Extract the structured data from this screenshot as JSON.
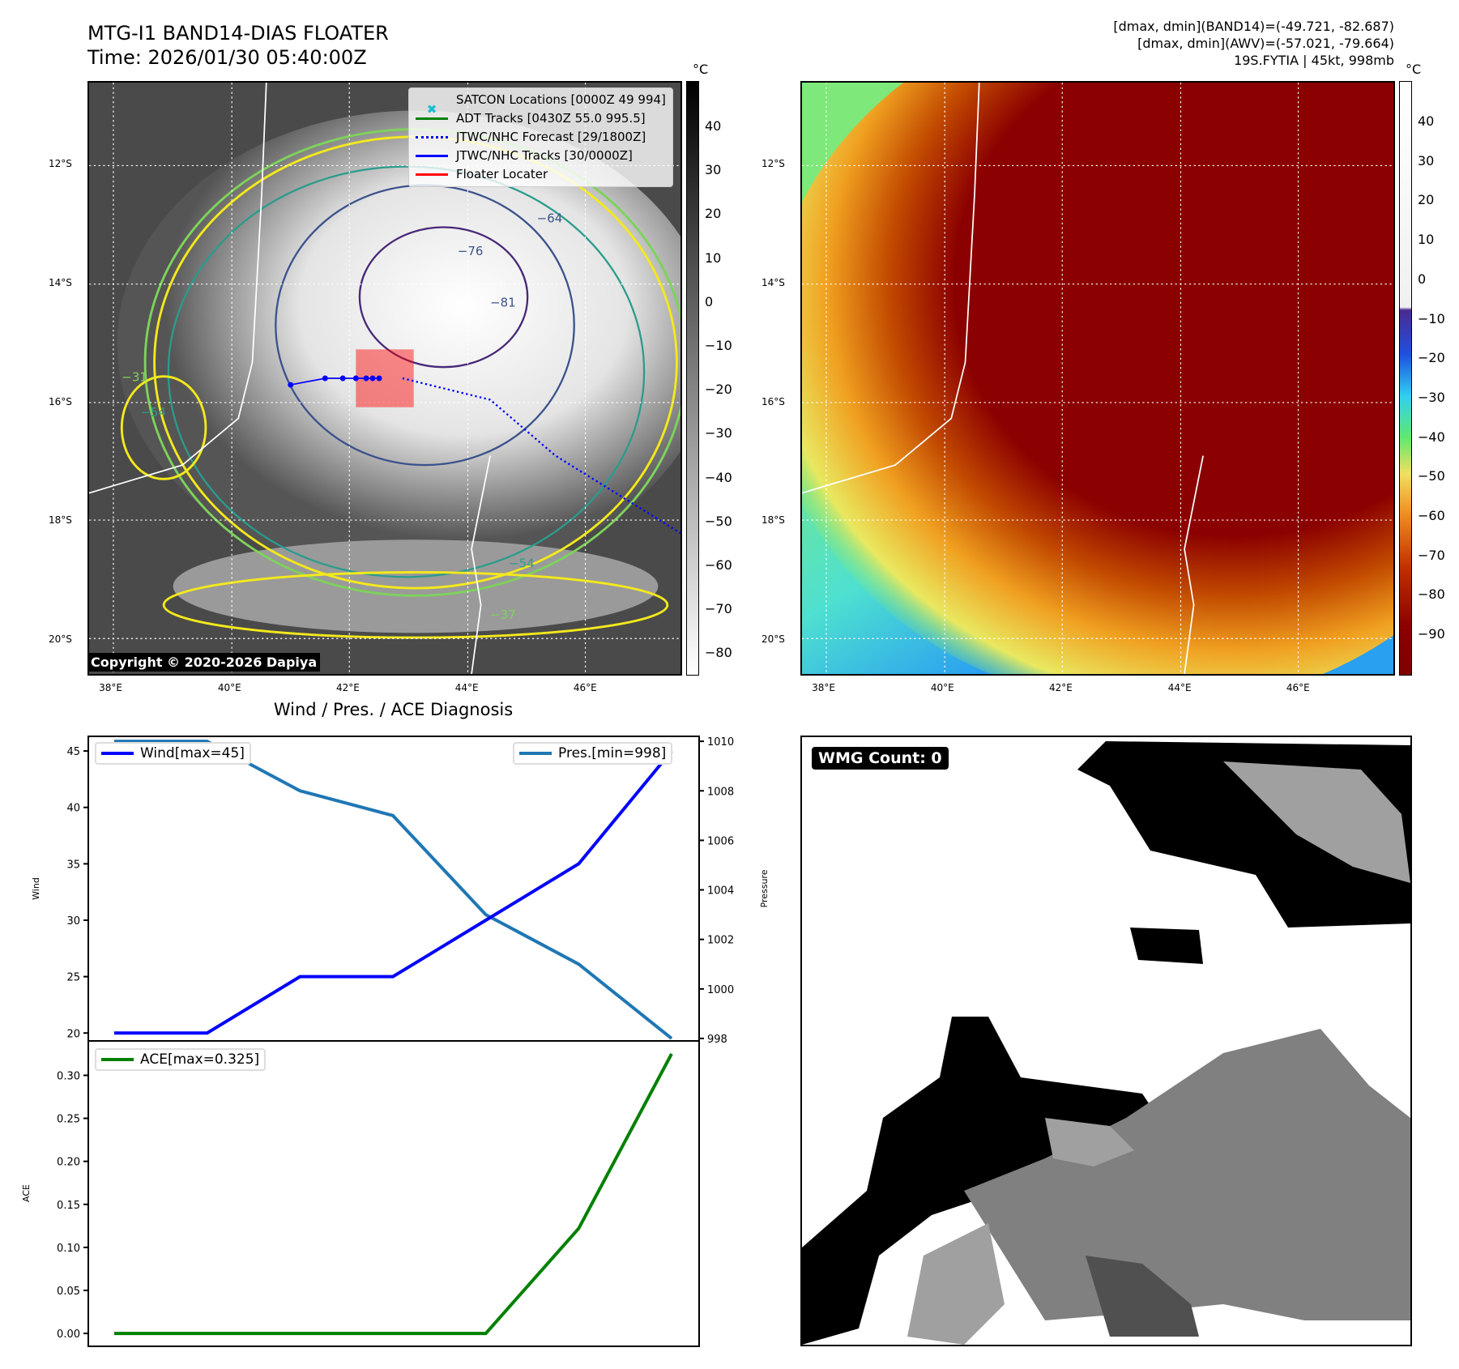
{
  "header": {
    "title": "MTG-I1 BAND14-DIAS FLOATER",
    "time": "Time: 2026/01/30 05:40:00Z",
    "stats": [
      "[dmax, dmin](BAND14)=(-49.721, -82.687)",
      "[dmax, dmin](AWV)=(-57.021, -79.664)",
      "19S.FYTIA | 45kt, 998mb"
    ]
  },
  "maps": {
    "lat_ticks": [
      "12°S",
      "14°S",
      "16°S",
      "18°S",
      "20°S"
    ],
    "lon_ticks": [
      "38°E",
      "40°E",
      "42°E",
      "44°E",
      "46°E"
    ],
    "unit": "°C",
    "left_cbar_ticks": [
      "40",
      "30",
      "20",
      "10",
      "0",
      "−10",
      "−20",
      "−30",
      "−40",
      "−50",
      "−60",
      "−70",
      "−80"
    ],
    "right_cbar_ticks": [
      "40",
      "30",
      "20",
      "10",
      "0",
      "−10",
      "−20",
      "−30",
      "−40",
      "−50",
      "−60",
      "−70",
      "−80",
      "−90"
    ],
    "contour_labels": [
      "−64",
      "−76",
      "−81",
      "−54",
      "−31",
      "−37",
      "−54"
    ],
    "copyright": "Copyright © 2020-2026 Dapiya",
    "legend": [
      "SATCON Locations [0000Z 49 994]",
      "ADT Tracks [0430Z 55.0 995.5]",
      "JTWC/NHC Forecast [29/1800Z]",
      "JTWC/NHC Tracks [30/0000Z]",
      "Floater Locater"
    ]
  },
  "diagnosis": {
    "title": "Wind / Pres. / ACE Diagnosis",
    "wmg_label": "WMG Count: 0"
  },
  "chart_data": [
    {
      "type": "line",
      "title": "Wind / Pres. / ACE Diagnosis",
      "ylabel": "Wind",
      "ylabel2": "Pressure",
      "series": [
        {
          "name": "Wind[max=45]",
          "color": "#0000ff",
          "axis": "left",
          "values": [
            20,
            20,
            25,
            25,
            30,
            35,
            45
          ]
        },
        {
          "name": "Pres.[min=998]",
          "color": "#1f77b4",
          "axis": "right",
          "values": [
            1010,
            1010,
            1008,
            1007,
            1003,
            1001,
            998
          ]
        }
      ],
      "yticks": [
        "20",
        "25",
        "30",
        "35",
        "40",
        "45"
      ],
      "y2ticks": [
        "998",
        "1000",
        "1002",
        "1004",
        "1006",
        "1008",
        "1010"
      ],
      "ylim": [
        19.3,
        46.3
      ],
      "y2lim": [
        997.9,
        1010.2
      ]
    },
    {
      "type": "line",
      "ylabel": "ACE",
      "series": [
        {
          "name": "ACE[max=0.325]",
          "color": "#008000",
          "values": [
            0,
            0,
            0,
            0,
            0,
            0.122,
            0.325
          ]
        }
      ],
      "yticks": [
        "0.00",
        "0.05",
        "0.10",
        "0.15",
        "0.20",
        "0.25",
        "0.30"
      ],
      "ylim": [
        -0.015,
        0.34
      ]
    }
  ]
}
